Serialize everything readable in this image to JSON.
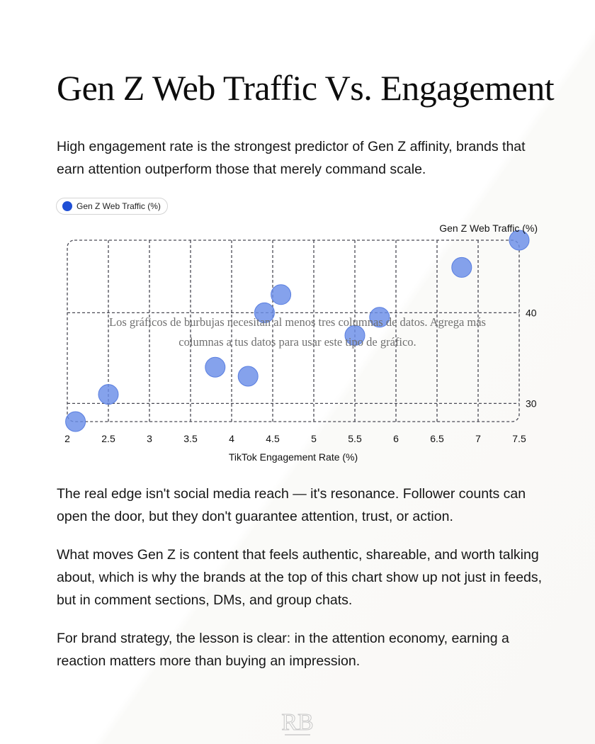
{
  "title": "Gen Z Web Traffic Vs. Engagement",
  "intro": "High engagement rate is the strongest predictor of Gen Z affinity, brands that earn attention outperform those that merely command scale.",
  "paragraphs": [
    "The real edge isn't social media reach — it's resonance. Follower counts can open the door, but they don't guarantee attention, trust, or action.",
    "What moves Gen Z is content that feels authentic, shareable, and worth talking about, which is why the brands at the top of this chart show up not just in feeds, but in comment sections, DMs, and group chats.",
    "For brand strategy, the lesson is clear: in the attention economy, earning a reaction matters more than buying an impression."
  ],
  "chart_overlay_message": [
    "Los gráficos de burbujas necesitan al menos tres columnas de datos. Agrega más",
    "columnas a tus datos para usar este tipo de gráfico."
  ],
  "logo_text": "RB",
  "colors": {
    "bubble": "#6a8ee8",
    "bubble_stroke": "#5a7fe0",
    "legend_dot": "#1f4fd6",
    "grid": "#4a4a55"
  },
  "chart_data": {
    "type": "scatter",
    "legend": [
      "Gen Z Web Traffic (%)"
    ],
    "legend_placement": "top-left",
    "xlabel": "TikTok Engagement Rate (%)",
    "ylabel": "Gen Z Web Traffic (%)",
    "x_ticks": [
      "2",
      "2.5",
      "3",
      "3.5",
      "4",
      "4.5",
      "5",
      "5.5",
      "6",
      "6.5",
      "7",
      "7.5"
    ],
    "y_ticks": [
      "30",
      "40"
    ],
    "xlim": [
      2,
      7.5
    ],
    "ylim": [
      28,
      48
    ],
    "grid": true,
    "series": [
      {
        "name": "Gen Z Web Traffic (%)",
        "points": [
          {
            "x": 2.1,
            "y": 28
          },
          {
            "x": 2.5,
            "y": 31
          },
          {
            "x": 3.8,
            "y": 34
          },
          {
            "x": 4.2,
            "y": 33
          },
          {
            "x": 4.4,
            "y": 40
          },
          {
            "x": 4.6,
            "y": 42
          },
          {
            "x": 5.5,
            "y": 37.5
          },
          {
            "x": 5.8,
            "y": 39.5
          },
          {
            "x": 6.8,
            "y": 45
          },
          {
            "x": 7.5,
            "y": 48
          }
        ]
      }
    ]
  }
}
